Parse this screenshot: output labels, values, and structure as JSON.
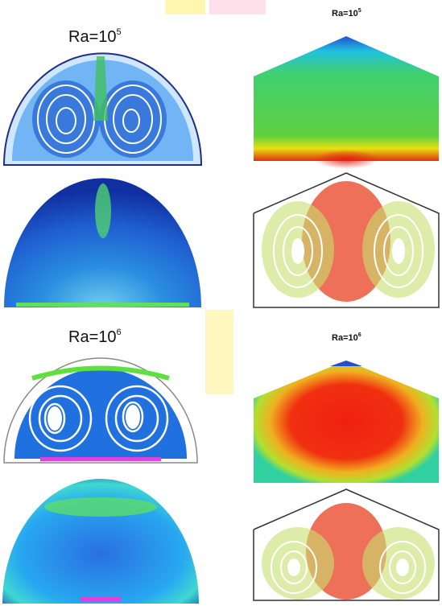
{
  "panels": [
    {
      "label": {
        "base": "Ra=10",
        "exponent": "5"
      }
    },
    {
      "label": {
        "base": "Ra=10",
        "exponent": "5"
      }
    },
    {
      "label": {
        "base": "Ra=10",
        "exponent": "6"
      }
    },
    {
      "label": {
        "base": "Ra=10",
        "exponent": "6"
      }
    }
  ]
}
